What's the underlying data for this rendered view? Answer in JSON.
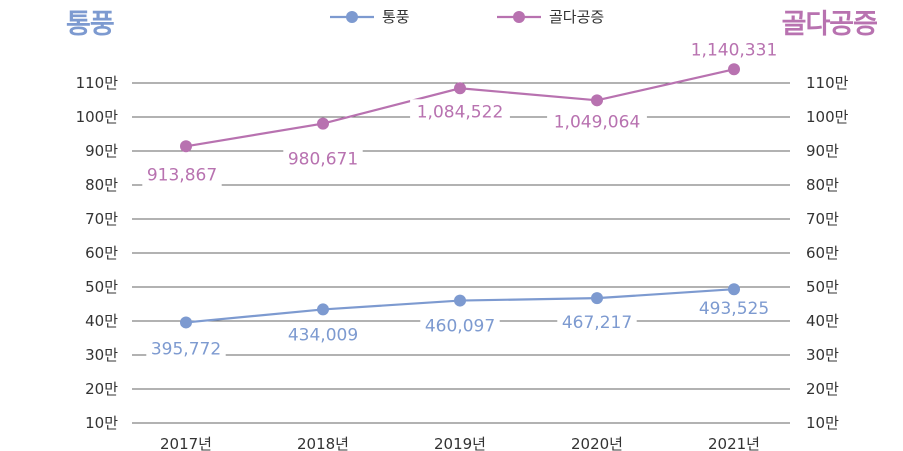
{
  "titles": {
    "left": "통풍",
    "right": "골다공증"
  },
  "colors": {
    "series1": "#7d9ad0",
    "series2": "#b872b0",
    "grid": "#666666",
    "label_bg": "#ffffff"
  },
  "chart_data": {
    "type": "line",
    "x": [
      "2017년",
      "2018년",
      "2019년",
      "2020년",
      "2021년"
    ],
    "y_ticks": [
      "10만",
      "20만",
      "30만",
      "40만",
      "50만",
      "60만",
      "70만",
      "80만",
      "90만",
      "100만",
      "110만"
    ],
    "y_unit": 10000,
    "ylim": [
      100000,
      1100000
    ],
    "grid": true,
    "legend_position": "top",
    "dual_y_axis": true,
    "series": [
      {
        "name": "통풍",
        "values": [
          395772,
          434009,
          460097,
          467217,
          493525
        ],
        "labels": [
          "395,772",
          "434,009",
          "460,097",
          "467,217",
          "493,525"
        ]
      },
      {
        "name": "골다공증",
        "values": [
          913867,
          980671,
          1084522,
          1049064,
          1140331
        ],
        "labels": [
          "913,867",
          "980,671",
          "1,084,522",
          "1,049,064",
          "1,140,331"
        ]
      }
    ]
  }
}
